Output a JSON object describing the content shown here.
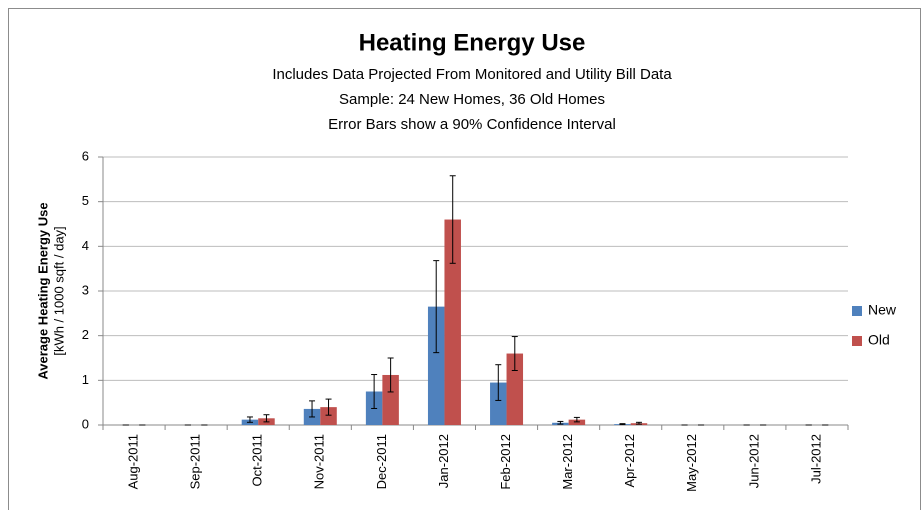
{
  "chart_data": {
    "type": "bar",
    "title": "Heating Energy Use",
    "subtitle": [
      "Includes Data Projected From Monitored and Utility Bill Data",
      "Sample: 24 New Homes, 36 Old Homes",
      "Error Bars show a 90% Confidence Interval"
    ],
    "y_label": "Average Heating Energy Use",
    "y_label_units": "[kWh / 1000 sqft / day]",
    "categories": [
      "Aug-2011",
      "Sep-2011",
      "Oct-2011",
      "Nov-2011",
      "Dec-2011",
      "Jan-2012",
      "Feb-2012",
      "Mar-2012",
      "Apr-2012",
      "May-2012",
      "Jun-2012",
      "Jul-2012"
    ],
    "series": [
      {
        "name": "New",
        "color": "#4f81bd",
        "values": [
          0,
          0,
          0.12,
          0.36,
          0.75,
          2.65,
          0.95,
          0.05,
          0.02,
          0,
          0,
          0
        ],
        "errors": [
          0,
          0,
          0.06,
          0.18,
          0.38,
          1.03,
          0.4,
          0.03,
          0.01,
          0,
          0,
          0
        ]
      },
      {
        "name": "Old",
        "color": "#c0504d",
        "values": [
          0,
          0,
          0.15,
          0.4,
          1.12,
          4.6,
          1.6,
          0.12,
          0.04,
          0,
          0,
          0
        ],
        "errors": [
          0,
          0,
          0.08,
          0.18,
          0.38,
          0.98,
          0.38,
          0.05,
          0.02,
          0,
          0,
          0
        ]
      }
    ],
    "ylim": [
      0,
      6
    ],
    "yticks": [
      0,
      1,
      2,
      3,
      4,
      5,
      6
    ],
    "grid": true,
    "legend": "right"
  }
}
